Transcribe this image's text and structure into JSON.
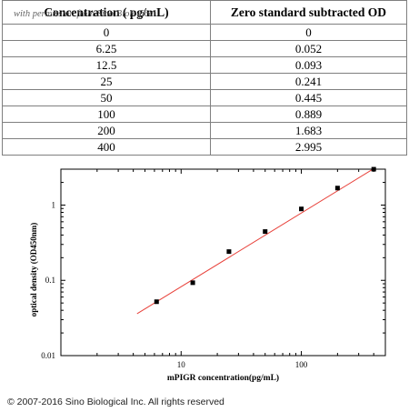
{
  "watermark": "with permission from Sino Biological",
  "table": {
    "headers": [
      "Concentration ( pg/mL)",
      "Zero standard subtracted OD"
    ],
    "rows": [
      [
        "0",
        "0"
      ],
      [
        "6.25",
        "0.052"
      ],
      [
        "12.5",
        "0.093"
      ],
      [
        "25",
        "0.241"
      ],
      [
        "50",
        "0.445"
      ],
      [
        "100",
        "0.889"
      ],
      [
        "200",
        "1.683"
      ],
      [
        "400",
        "2.995"
      ]
    ]
  },
  "chart_data": {
    "type": "scatter",
    "title": "",
    "xlabel": "mPIGR  concentration(pg/mL)",
    "ylabel": "optical density (OD450nm)",
    "xscale": "log",
    "yscale": "log",
    "xlim": [
      1,
      500
    ],
    "ylim": [
      0.01,
      3
    ],
    "xticks": [
      10,
      100
    ],
    "yticks": [
      0.01,
      0.1,
      1
    ],
    "xtick_labels": [
      "10",
      "100"
    ],
    "ytick_labels": [
      "0.01",
      "0.1",
      "1"
    ],
    "series": [
      {
        "points": [
          {
            "x": 6.25,
            "y": 0.052
          },
          {
            "x": 12.5,
            "y": 0.093
          },
          {
            "x": 25,
            "y": 0.241
          },
          {
            "x": 50,
            "y": 0.445
          },
          {
            "x": 100,
            "y": 0.889
          },
          {
            "x": 200,
            "y": 1.683
          },
          {
            "x": 400,
            "y": 2.995
          }
        ],
        "marker_color": "#000000"
      }
    ],
    "fit_line": {
      "x_start": 4.3,
      "x_end": 400,
      "y_start": 0.036,
      "y_end": 3.05,
      "color": "#e8413a"
    },
    "grid": false,
    "legend": "none"
  },
  "footer": "© 2007-2016 Sino Biological Inc. All rights reserved"
}
